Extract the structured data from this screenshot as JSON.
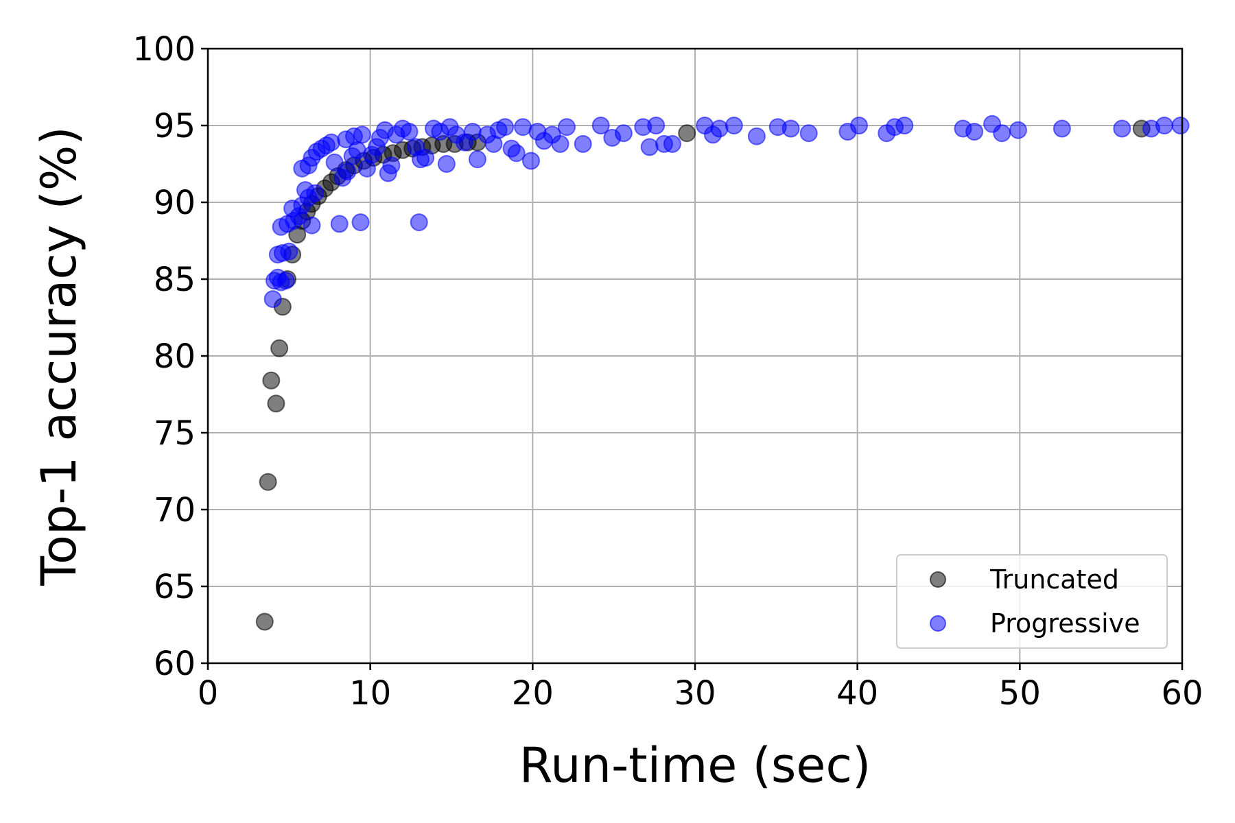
{
  "chart_data": {
    "type": "scatter",
    "title": "",
    "xlabel": "Run-time (sec)",
    "ylabel": "Top-1 accuracy (%)",
    "xlim": [
      0,
      60
    ],
    "ylim": [
      60,
      100
    ],
    "xticks": [
      "0",
      "10",
      "20",
      "30",
      "40",
      "50",
      "60"
    ],
    "yticks": [
      "60",
      "65",
      "70",
      "75",
      "80",
      "85",
      "90",
      "95",
      "100"
    ],
    "grid": true,
    "legend_position": "bottom-right",
    "series": [
      {
        "name": "Truncated",
        "color": "#000000",
        "points": [
          [
            3.5,
            62.7
          ],
          [
            3.7,
            71.8
          ],
          [
            4.2,
            76.9
          ],
          [
            3.9,
            78.4
          ],
          [
            4.4,
            80.5
          ],
          [
            4.6,
            83.2
          ],
          [
            4.9,
            85.0
          ],
          [
            5.2,
            86.6
          ],
          [
            5.5,
            87.9
          ],
          [
            5.8,
            88.8
          ],
          [
            6.1,
            89.4
          ],
          [
            6.4,
            89.9
          ],
          [
            6.8,
            90.4
          ],
          [
            7.2,
            90.9
          ],
          [
            7.6,
            91.3
          ],
          [
            8.0,
            91.7
          ],
          [
            8.5,
            92.1
          ],
          [
            9.0,
            92.4
          ],
          [
            9.6,
            92.7
          ],
          [
            10.2,
            92.9
          ],
          [
            10.8,
            93.1
          ],
          [
            11.4,
            93.2
          ],
          [
            12.0,
            93.4
          ],
          [
            12.6,
            93.5
          ],
          [
            13.2,
            93.6
          ],
          [
            13.8,
            93.7
          ],
          [
            14.5,
            93.8
          ],
          [
            15.2,
            93.8
          ],
          [
            16.0,
            93.9
          ],
          [
            16.6,
            93.9
          ],
          [
            29.5,
            94.5
          ],
          [
            57.5,
            94.8
          ]
        ]
      },
      {
        "name": "Progressive",
        "color": "#0000ff",
        "points": [
          [
            4.0,
            83.7
          ],
          [
            4.1,
            84.9
          ],
          [
            4.3,
            85.1
          ],
          [
            4.5,
            84.8
          ],
          [
            4.8,
            84.9
          ],
          [
            4.3,
            86.6
          ],
          [
            4.6,
            86.7
          ],
          [
            5.0,
            86.8
          ],
          [
            4.5,
            88.4
          ],
          [
            4.9,
            88.6
          ],
          [
            5.3,
            88.8
          ],
          [
            5.6,
            89.1
          ],
          [
            5.2,
            89.6
          ],
          [
            5.8,
            89.8
          ],
          [
            6.2,
            90.3
          ],
          [
            6.6,
            90.6
          ],
          [
            6.0,
            90.8
          ],
          [
            6.4,
            88.5
          ],
          [
            8.1,
            88.6
          ],
          [
            9.4,
            88.7
          ],
          [
            13.0,
            88.7
          ],
          [
            5.8,
            92.2
          ],
          [
            6.2,
            92.4
          ],
          [
            6.4,
            92.9
          ],
          [
            6.7,
            93.3
          ],
          [
            7.0,
            93.5
          ],
          [
            7.3,
            93.7
          ],
          [
            7.6,
            93.9
          ],
          [
            7.8,
            92.6
          ],
          [
            8.3,
            91.6
          ],
          [
            8.6,
            92.0
          ],
          [
            8.9,
            93.0
          ],
          [
            9.2,
            93.4
          ],
          [
            8.5,
            94.1
          ],
          [
            9.0,
            94.3
          ],
          [
            9.5,
            94.4
          ],
          [
            9.8,
            92.2
          ],
          [
            10.1,
            93.1
          ],
          [
            10.4,
            93.6
          ],
          [
            10.6,
            94.2
          ],
          [
            10.9,
            94.7
          ],
          [
            11.1,
            91.9
          ],
          [
            11.3,
            92.4
          ],
          [
            11.6,
            94.4
          ],
          [
            12.0,
            94.8
          ],
          [
            12.4,
            94.6
          ],
          [
            12.8,
            93.6
          ],
          [
            13.1,
            92.8
          ],
          [
            13.4,
            92.9
          ],
          [
            13.9,
            94.8
          ],
          [
            14.3,
            94.6
          ],
          [
            14.7,
            92.5
          ],
          [
            14.9,
            94.9
          ],
          [
            15.3,
            94.4
          ],
          [
            15.8,
            93.9
          ],
          [
            16.3,
            94.6
          ],
          [
            16.6,
            92.8
          ],
          [
            17.2,
            94.4
          ],
          [
            17.6,
            93.8
          ],
          [
            17.9,
            94.7
          ],
          [
            18.3,
            94.9
          ],
          [
            18.7,
            93.5
          ],
          [
            19.0,
            93.2
          ],
          [
            19.4,
            94.9
          ],
          [
            19.9,
            92.7
          ],
          [
            20.3,
            94.6
          ],
          [
            20.7,
            94.0
          ],
          [
            21.2,
            94.4
          ],
          [
            21.7,
            93.8
          ],
          [
            22.1,
            94.9
          ],
          [
            23.1,
            93.8
          ],
          [
            24.2,
            95.0
          ],
          [
            24.9,
            94.2
          ],
          [
            25.6,
            94.5
          ],
          [
            26.8,
            94.9
          ],
          [
            27.2,
            93.6
          ],
          [
            27.6,
            95.0
          ],
          [
            28.1,
            93.8
          ],
          [
            28.6,
            93.8
          ],
          [
            30.6,
            95.0
          ],
          [
            31.1,
            94.4
          ],
          [
            31.5,
            94.8
          ],
          [
            32.4,
            95.0
          ],
          [
            33.8,
            94.3
          ],
          [
            35.1,
            94.9
          ],
          [
            35.9,
            94.8
          ],
          [
            37.0,
            94.5
          ],
          [
            39.4,
            94.6
          ],
          [
            40.1,
            95.0
          ],
          [
            41.8,
            94.5
          ],
          [
            42.3,
            94.9
          ],
          [
            42.9,
            95.0
          ],
          [
            46.5,
            94.8
          ],
          [
            47.2,
            94.6
          ],
          [
            48.3,
            95.1
          ],
          [
            48.9,
            94.5
          ],
          [
            49.9,
            94.7
          ],
          [
            52.6,
            94.8
          ],
          [
            56.3,
            94.8
          ],
          [
            58.1,
            94.8
          ],
          [
            58.9,
            95.0
          ],
          [
            59.9,
            95.0
          ]
        ]
      }
    ]
  }
}
